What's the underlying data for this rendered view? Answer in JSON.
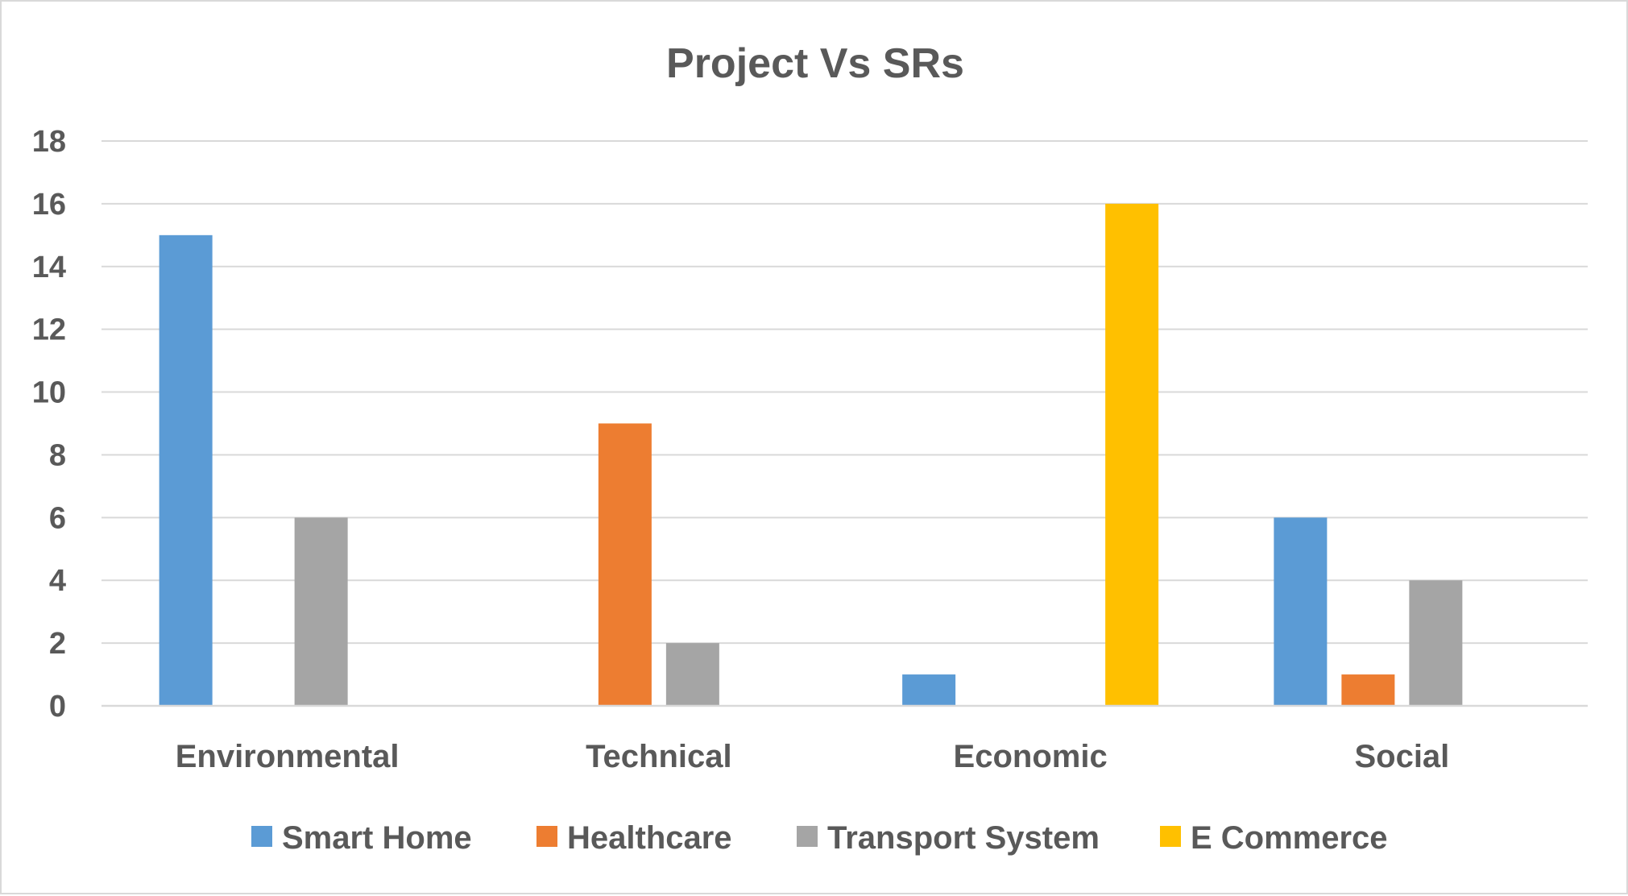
{
  "chart_data": {
    "type": "bar",
    "title": "Project Vs SRs",
    "xlabel": "",
    "ylabel": "",
    "categories": [
      "Environmental",
      "Technical",
      "Economic",
      "Social"
    ],
    "series": [
      {
        "name": "Smart Home",
        "color": "#5b9bd5",
        "values": [
          15,
          0,
          1,
          6
        ]
      },
      {
        "name": "Healthcare",
        "color": "#ed7d31",
        "values": [
          0,
          9,
          0,
          1
        ]
      },
      {
        "name": "Transport System",
        "color": "#a5a5a5",
        "values": [
          6,
          2,
          0,
          4
        ]
      },
      {
        "name": "E Commerce",
        "color": "#ffc000",
        "values": [
          0,
          0,
          16,
          0
        ]
      }
    ],
    "ylim": [
      0,
      18
    ],
    "yticks": [
      0,
      2,
      4,
      6,
      8,
      10,
      12,
      14,
      16,
      18
    ],
    "grid": true,
    "legend_position": "bottom"
  }
}
